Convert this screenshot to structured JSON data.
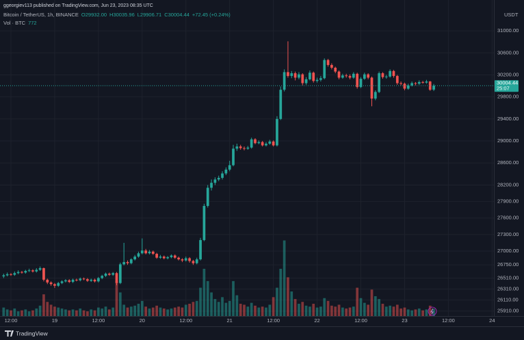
{
  "chart_data": {
    "type": "candlestick",
    "attribution": "ggeorgiev113 published on TradingView.com, Jun 23, 2023 08:35 UTC",
    "symbol_label": "Bitcoin / TetherUS, 1h, BINANCE",
    "ohlc_labels": [
      "O29932.00",
      "H30035.96",
      "L29906.71",
      "C30004.44",
      "+72.45 (+0.24%)"
    ],
    "volume_label": "Vol · BTC",
    "currency": "USDT",
    "countdown": "25:07",
    "brand": "TradingView",
    "up_color": "#26a69a",
    "down_color": "#ef5350",
    "grid": true,
    "xlim": [
      -1,
      134.5
    ],
    "xticks": [
      {
        "value": 2,
        "label": "12:00"
      },
      {
        "value": 14,
        "label": "19"
      },
      {
        "value": 26,
        "label": "12:00"
      },
      {
        "value": 38,
        "label": "20"
      },
      {
        "value": 50,
        "label": "12:00"
      },
      {
        "value": 62,
        "label": "21"
      },
      {
        "value": 74,
        "label": "12:00"
      },
      {
        "value": 86,
        "label": "22"
      },
      {
        "value": 98,
        "label": "12:00"
      },
      {
        "value": 110,
        "label": "23"
      },
      {
        "value": 122,
        "label": "12:00"
      },
      {
        "value": 134,
        "label": "24"
      }
    ],
    "ylim": [
      25820,
      31560
    ],
    "yticks": [
      {
        "value": 31000,
        "label": "31000.00"
      },
      {
        "value": 30600,
        "label": "30600.00"
      },
      {
        "value": 30200,
        "label": "30200.00"
      },
      {
        "value": 29800,
        "label": "29800.00"
      },
      {
        "value": 29400,
        "label": "29400.00"
      },
      {
        "value": 29000,
        "label": "29000.00"
      },
      {
        "value": 28600,
        "label": "28600.00"
      },
      {
        "value": 28200,
        "label": "28200.00"
      },
      {
        "value": 27900,
        "label": "27900.00"
      },
      {
        "value": 27600,
        "label": "27600.00"
      },
      {
        "value": 27300,
        "label": "27300.00"
      },
      {
        "value": 27000,
        "label": "27000.00"
      },
      {
        "value": 26750,
        "label": "26750.00"
      },
      {
        "value": 26510,
        "label": "26510.00"
      },
      {
        "value": 26310,
        "label": "26310.00"
      },
      {
        "value": 26110,
        "label": "26110.00"
      },
      {
        "value": 25910,
        "label": "25910.00"
      }
    ],
    "volume_ylim": [
      0,
      11000
    ],
    "open": [
      26540,
      26560,
      26580,
      26570,
      26600,
      26620,
      26610,
      26640,
      26650,
      26630,
      26660,
      26690,
      26480,
      26430,
      26400,
      26370,
      26420,
      26450,
      26470,
      26440,
      26480,
      26470,
      26500,
      26490,
      26460,
      26480,
      26450,
      26510,
      26550,
      26590,
      26570,
      26600,
      26420,
      26760,
      26800,
      26780,
      26850,
      26900,
      26960,
      27010,
      26960,
      26990,
      26950,
      26880,
      26900,
      26870,
      26890,
      26920,
      26880,
      26850,
      26830,
      26870,
      26820,
      26780,
      26850,
      27200,
      27820,
      28150,
      28240,
      28300,
      28330,
      28410,
      28480,
      28560,
      28860,
      28900,
      28870,
      28860,
      28880,
      29030,
      28960,
      28980,
      28920,
      28950,
      28990,
      28920,
      29400,
      29930,
      30250,
      30180,
      30230,
      30150,
      30210,
      30050,
      30120,
      30240,
      30090,
      30110,
      30140,
      30470,
      30380,
      30330,
      30260,
      30150,
      30190,
      30180,
      30150,
      30220,
      29980,
      30130,
      30210,
      30150,
      29770,
      29890,
      30230,
      30160,
      30170,
      30270,
      30180,
      30050,
      30040,
      29950,
      30010,
      30050,
      30040,
      30070,
      30060,
      30080,
      29932
    ],
    "high": [
      26590,
      26610,
      26600,
      26630,
      26650,
      26640,
      26660,
      26680,
      26670,
      26690,
      26720,
      26700,
      26500,
      26450,
      26420,
      26440,
      26470,
      26490,
      26490,
      26500,
      26500,
      26520,
      26520,
      26510,
      26500,
      26500,
      26530,
      26570,
      26610,
      26610,
      26620,
      26620,
      26790,
      27150,
      26830,
      26870,
      26930,
      26990,
      27230,
      27040,
      27020,
      27010,
      26970,
      26930,
      26920,
      26910,
      26940,
      26940,
      26900,
      26870,
      26900,
      26890,
      26840,
      26880,
      27240,
      27860,
      28200,
      28300,
      28340,
      28370,
      28450,
      28520,
      28640,
      28930,
      28950,
      28930,
      28900,
      28910,
      29060,
      29050,
      29010,
      29000,
      28980,
      29020,
      29010,
      29450,
      29990,
      30300,
      30810,
      30270,
      30260,
      30250,
      30230,
      30160,
      30280,
      30260,
      30150,
      30180,
      30500,
      30490,
      30410,
      30350,
      30280,
      30220,
      30220,
      30210,
      30250,
      30240,
      30160,
      30240,
      30230,
      30170,
      29920,
      30260,
      30250,
      30200,
      30300,
      30290,
      30200,
      30080,
      30060,
      30040,
      30080,
      30070,
      30100,
      30090,
      30110,
      30090,
      30035.96
    ],
    "low": [
      26510,
      26540,
      26550,
      26550,
      26580,
      26590,
      26590,
      26620,
      26610,
      26610,
      26640,
      26450,
      26400,
      26370,
      26330,
      26350,
      26400,
      26430,
      26420,
      26420,
      26450,
      26450,
      26470,
      26440,
      26440,
      26430,
      26430,
      26490,
      26530,
      26550,
      26550,
      26380,
      26400,
      26740,
      26750,
      26760,
      26830,
      26880,
      26940,
      26940,
      26940,
      26930,
      26860,
      26860,
      26850,
      26850,
      26870,
      26860,
      26830,
      26800,
      26810,
      26790,
      26750,
      26760,
      26830,
      27180,
      27790,
      28100,
      28200,
      28270,
      28300,
      28380,
      28450,
      28540,
      28820,
      28840,
      28830,
      28840,
      28860,
      28940,
      28940,
      28900,
      28900,
      28930,
      28900,
      28900,
      29380,
      29900,
      30150,
      30140,
      30100,
      30120,
      30010,
      30020,
      30100,
      30060,
      30060,
      30080,
      30120,
      30350,
      30300,
      30230,
      30120,
      30130,
      30150,
      30120,
      30130,
      29950,
      29960,
      30110,
      30120,
      29630,
      29740,
      29870,
      30130,
      30130,
      30150,
      30150,
      30020,
      30010,
      29920,
      29930,
      29990,
      30010,
      30020,
      30040,
      30040,
      29910,
      29906.71
    ],
    "close": [
      26560,
      26580,
      26570,
      26600,
      26620,
      26610,
      26640,
      26650,
      26630,
      26660,
      26690,
      26480,
      26430,
      26400,
      26370,
      26420,
      26450,
      26470,
      26440,
      26480,
      26470,
      26500,
      26490,
      26460,
      26480,
      26450,
      26510,
      26550,
      26590,
      26570,
      26600,
      26420,
      26760,
      26800,
      26780,
      26850,
      26900,
      26960,
      27010,
      26960,
      26990,
      26950,
      26880,
      26900,
      26870,
      26890,
      26920,
      26880,
      26850,
      26830,
      26870,
      26820,
      26780,
      26850,
      27200,
      27820,
      28150,
      28240,
      28300,
      28330,
      28410,
      28480,
      28560,
      28860,
      28900,
      28870,
      28860,
      28880,
      29030,
      28960,
      28980,
      28920,
      28950,
      28990,
      28920,
      29400,
      29930,
      30250,
      30180,
      30230,
      30150,
      30210,
      30050,
      30120,
      30240,
      30090,
      30110,
      30140,
      30470,
      30380,
      30330,
      30260,
      30150,
      30190,
      30180,
      30150,
      30220,
      29980,
      30130,
      30210,
      30150,
      29770,
      29890,
      30230,
      30160,
      30170,
      30270,
      30180,
      30050,
      30040,
      29950,
      30010,
      30050,
      30040,
      30070,
      30060,
      30080,
      29930,
      30004.44
    ],
    "volume": [
      900,
      700,
      600,
      800,
      500,
      600,
      700,
      500,
      600,
      800,
      1100,
      2300,
      1500,
      1200,
      1000,
      900,
      800,
      700,
      600,
      700,
      600,
      800,
      600,
      500,
      700,
      600,
      900,
      800,
      1000,
      700,
      900,
      3700,
      2500,
      1200,
      900,
      1000,
      1100,
      1300,
      1600,
      1000,
      800,
      900,
      1100,
      900,
      800,
      700,
      800,
      900,
      1000,
      900,
      1200,
      1300,
      1500,
      1600,
      3000,
      5000,
      3700,
      2500,
      1800,
      1500,
      2000,
      1400,
      1600,
      3700,
      2200,
      1300,
      1200,
      1000,
      1400,
      1100,
      900,
      1000,
      900,
      1200,
      2000,
      3000,
      5000,
      8000,
      4100,
      2600,
      1800,
      1300,
      1500,
      1100,
      1000,
      1300,
      900,
      1000,
      1900,
      1600,
      1100,
      1000,
      1200,
      900,
      800,
      900,
      1000,
      3000,
      1900,
      1400,
      1200,
      2800,
      2100,
      1800,
      1300,
      1000,
      1100,
      1000,
      1200,
      800,
      900,
      700,
      600,
      700,
      800,
      600,
      700,
      1100,
      772
    ]
  }
}
